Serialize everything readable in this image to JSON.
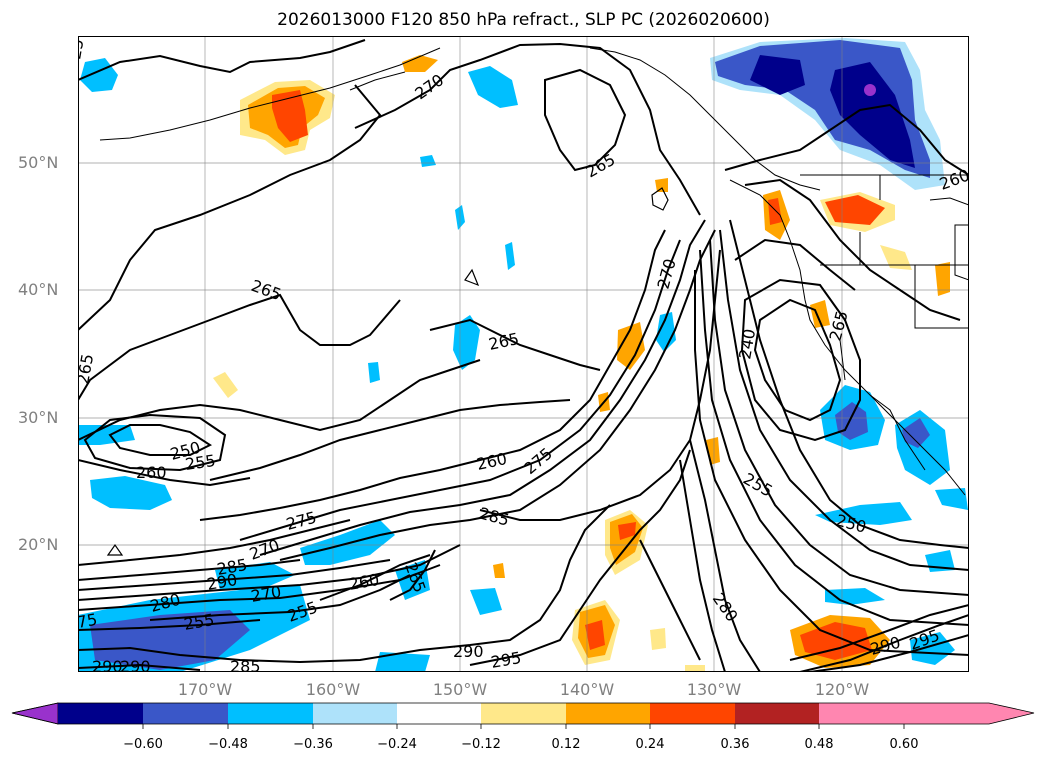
{
  "title": "2026013000 F120 850 hPa refract., SLP PC (2026020600)",
  "lat_labels": [
    "50°N",
    "40°N",
    "30°N",
    "20°N"
  ],
  "lon_labels": [
    "170°W",
    "160°W",
    "150°W",
    "140°W",
    "130°W",
    "120°W"
  ],
  "colorbar": {
    "ticks": [
      "−0.60",
      "−0.48",
      "−0.36",
      "−0.24",
      "−0.12",
      "0.12",
      "0.24",
      "0.36",
      "0.48",
      "0.60"
    ],
    "colors": [
      "#9932cc",
      "#00008b",
      "#3a57c8",
      "#00bfff",
      "#aee2fa",
      "#ffffff",
      "#ffe88a",
      "#ffa500",
      "#ff4500",
      "#b22222",
      "#ff86b0"
    ]
  },
  "contour_labels": [
    "270",
    "265",
    "260",
    "265",
    "265",
    "265",
    "270",
    "240",
    "250",
    "255",
    "260",
    "260",
    "275",
    "285",
    "275",
    "270",
    "285",
    "290",
    "280",
    "270",
    "255",
    "255",
    "260",
    "265",
    "250",
    "255",
    "280",
    "290",
    "295",
    "290",
    "295",
    "285",
    "290",
    "290",
    "265",
    "25",
    "75"
  ]
}
